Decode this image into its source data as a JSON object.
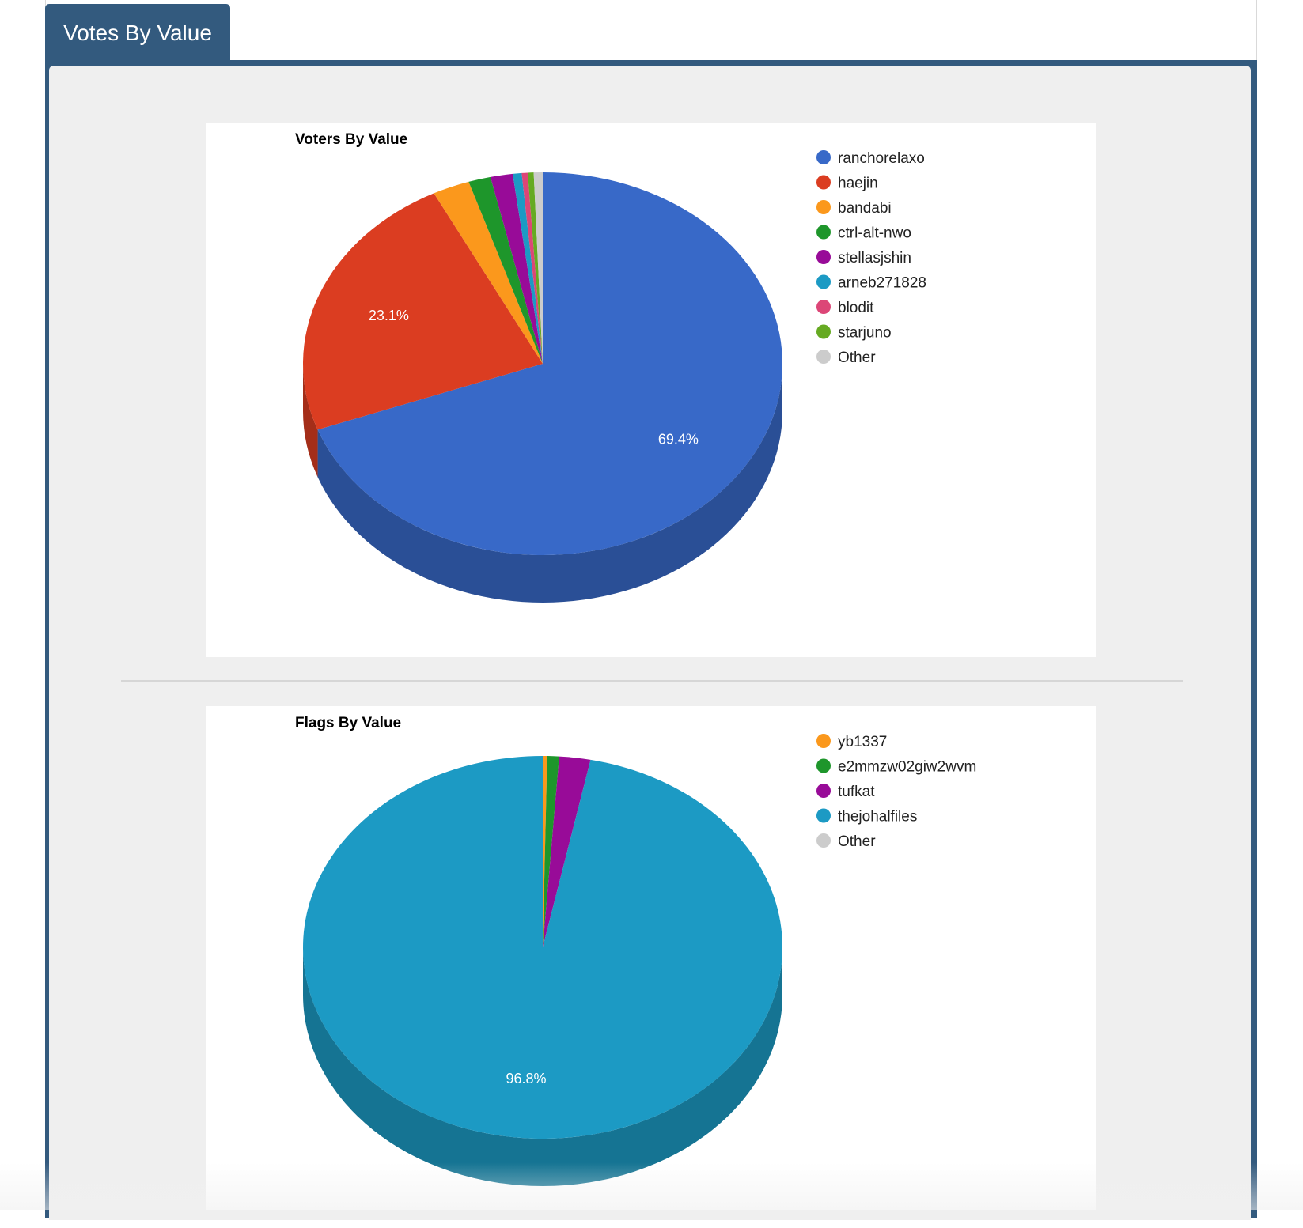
{
  "tab": {
    "label": "Votes By Value"
  },
  "chart_data": [
    {
      "type": "pie",
      "title": "Voters By Value",
      "legend_position": "right",
      "three_d": true,
      "slices": [
        {
          "name": "ranchorelaxo",
          "value": 69.4,
          "color": "#3869c8",
          "label": "69.4%"
        },
        {
          "name": "haejin",
          "value": 23.1,
          "color": "#db3d21",
          "label": "23.1%"
        },
        {
          "name": "bandabi",
          "value": 2.5,
          "color": "#fb981c",
          "label": ""
        },
        {
          "name": "ctrl-alt-nwo",
          "value": 1.5,
          "color": "#1e962b",
          "label": ""
        },
        {
          "name": "stellasjshin",
          "value": 1.5,
          "color": "#980b98",
          "label": ""
        },
        {
          "name": "arneb271828",
          "value": 0.6,
          "color": "#1c9ac4",
          "label": ""
        },
        {
          "name": "blodit",
          "value": 0.4,
          "color": "#dc4677",
          "label": ""
        },
        {
          "name": "starjuno",
          "value": 0.4,
          "color": "#66aa22",
          "label": ""
        },
        {
          "name": "Other",
          "value": 0.6,
          "color": "#cccccc",
          "label": ""
        }
      ]
    },
    {
      "type": "pie",
      "title": "Flags By Value",
      "legend_position": "right",
      "three_d": true,
      "slices": [
        {
          "name": "yb1337",
          "value": 0.3,
          "color": "#fb981c",
          "label": ""
        },
        {
          "name": "e2mmzw02giw2wvm",
          "value": 0.8,
          "color": "#1e962b",
          "label": ""
        },
        {
          "name": "tufkat",
          "value": 2.1,
          "color": "#980b98",
          "label": ""
        },
        {
          "name": "thejohalfiles",
          "value": 96.8,
          "color": "#1c9ac4",
          "label": "96.8%"
        },
        {
          "name": "Other",
          "value": 0.0,
          "color": "#cccccc",
          "label": ""
        }
      ]
    }
  ]
}
